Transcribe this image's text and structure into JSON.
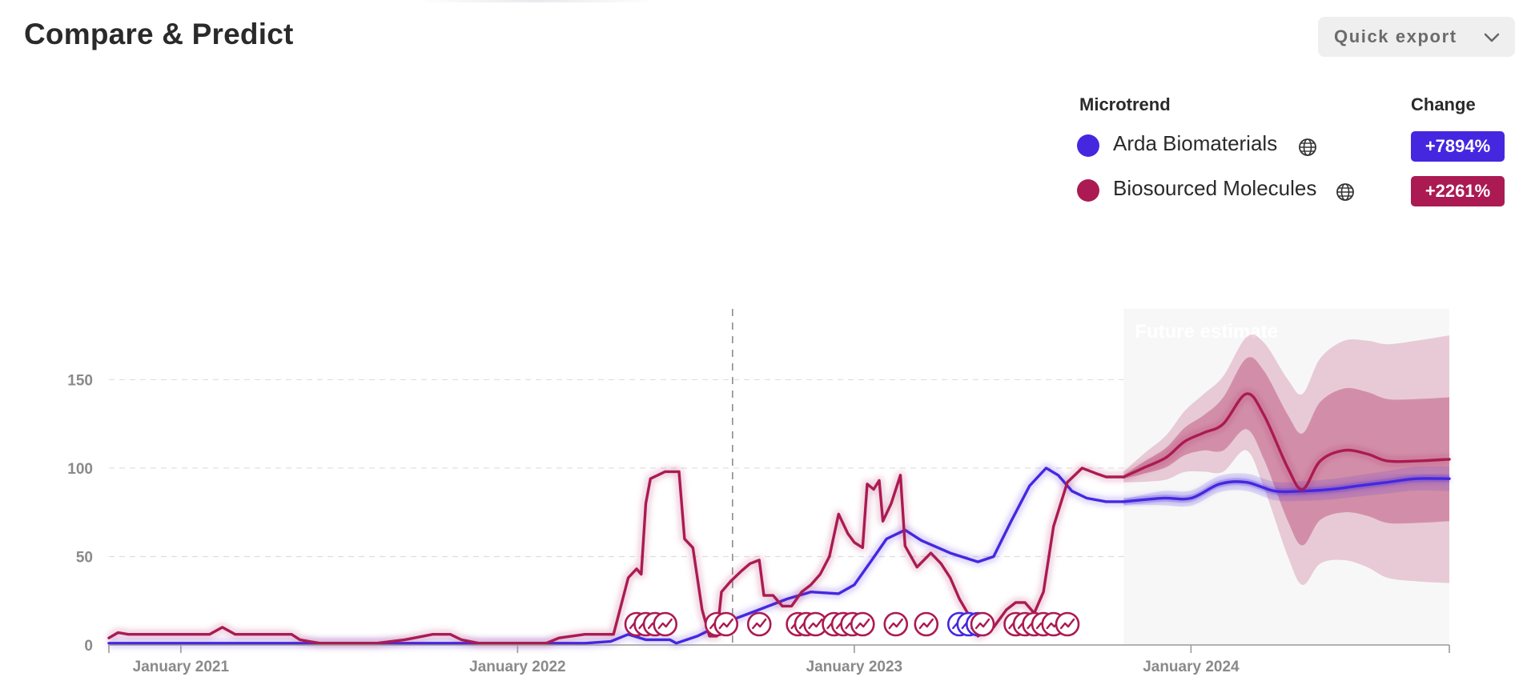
{
  "header": {
    "title": "Compare & Predict",
    "export_label": "Quick export"
  },
  "legend": {
    "name_header": "Microtrend",
    "change_header": "Change",
    "items": [
      {
        "name": "Arda Biomaterials",
        "change": "+7894%",
        "color": "#4527e0",
        "icon": "globe-icon"
      },
      {
        "name": "Biosourced Molecules",
        "change": "+2261%",
        "color": "#ab1a52",
        "icon": "globe-icon"
      }
    ]
  },
  "chart_data": {
    "type": "line",
    "future_label": "Future estimate",
    "ylim": [
      0,
      190
    ],
    "yticks": [
      0,
      50,
      100,
      150
    ],
    "xlim": [
      "2020-10-15",
      "2024-10-07"
    ],
    "xticks": [
      {
        "date": "2021-01-01",
        "label": "January 2021"
      },
      {
        "date": "2022-01-01",
        "label": "January 2022"
      },
      {
        "date": "2023-01-01",
        "label": "January 2023"
      },
      {
        "date": "2024-01-01",
        "label": "January 2024"
      }
    ],
    "forecast_start": "2023-10-20",
    "marker_date": "2022-08-22",
    "grid": true,
    "series": [
      {
        "name": "Arda Biomaterials",
        "color": "#4527e0",
        "points": [
          [
            "2020-10-15",
            1
          ],
          [
            "2021-06-01",
            1
          ],
          [
            "2022-01-01",
            1
          ],
          [
            "2022-03-15",
            1
          ],
          [
            "2022-04-12",
            2
          ],
          [
            "2022-05-01",
            6
          ],
          [
            "2022-05-20",
            3
          ],
          [
            "2022-06-15",
            3
          ],
          [
            "2022-06-22",
            1
          ],
          [
            "2022-07-15",
            5
          ],
          [
            "2022-08-15",
            13
          ],
          [
            "2022-09-15",
            19
          ],
          [
            "2022-10-20",
            26
          ],
          [
            "2022-11-15",
            30
          ],
          [
            "2022-12-15",
            29
          ],
          [
            "2023-01-01",
            34
          ],
          [
            "2023-01-20",
            48
          ],
          [
            "2023-02-05",
            60
          ],
          [
            "2023-02-25",
            65
          ],
          [
            "2023-03-15",
            59
          ],
          [
            "2023-04-15",
            52
          ],
          [
            "2023-05-15",
            47
          ],
          [
            "2023-06-01",
            50
          ],
          [
            "2023-06-20",
            70
          ],
          [
            "2023-07-10",
            90
          ],
          [
            "2023-07-28",
            100
          ],
          [
            "2023-08-10",
            96
          ],
          [
            "2023-08-25",
            87
          ],
          [
            "2023-09-10",
            83
          ],
          [
            "2023-10-01",
            81
          ],
          [
            "2023-10-20",
            81
          ]
        ],
        "forecast": [
          [
            "2023-10-20",
            81
          ],
          [
            "2023-12-01",
            83
          ],
          [
            "2024-01-01",
            83
          ],
          [
            "2024-02-01",
            91
          ],
          [
            "2024-03-01",
            92
          ],
          [
            "2024-04-01",
            87
          ],
          [
            "2024-05-01",
            87
          ],
          [
            "2024-06-01",
            88
          ],
          [
            "2024-07-01",
            90
          ],
          [
            "2024-08-01",
            92
          ],
          [
            "2024-09-01",
            94
          ],
          [
            "2024-10-07",
            94
          ]
        ],
        "band_inner_half": 2,
        "band_outer_half": [
          [
            0,
            1.5
          ],
          [
            1,
            4
          ],
          [
            11,
            7
          ]
        ],
        "badges": [
          "2023-04-25",
          "2023-05-05",
          "2023-05-15"
        ]
      },
      {
        "name": "Biosourced Molecules",
        "color": "#ab1a52",
        "points": [
          [
            "2020-10-15",
            4
          ],
          [
            "2020-10-25",
            7
          ],
          [
            "2020-11-05",
            6
          ],
          [
            "2021-02-01",
            6
          ],
          [
            "2021-02-15",
            10
          ],
          [
            "2021-03-01",
            6
          ],
          [
            "2021-04-01",
            6
          ],
          [
            "2021-05-01",
            6
          ],
          [
            "2021-05-10",
            3
          ],
          [
            "2021-05-20",
            2
          ],
          [
            "2021-06-01",
            1
          ],
          [
            "2021-08-01",
            1
          ],
          [
            "2021-09-01",
            3
          ],
          [
            "2021-10-01",
            6
          ],
          [
            "2021-10-20",
            6
          ],
          [
            "2021-11-01",
            3
          ],
          [
            "2021-11-20",
            1
          ],
          [
            "2022-01-01",
            1
          ],
          [
            "2022-02-01",
            1
          ],
          [
            "2022-02-15",
            4
          ],
          [
            "2022-03-15",
            6
          ],
          [
            "2022-04-01",
            6
          ],
          [
            "2022-04-15",
            6
          ],
          [
            "2022-05-01",
            38
          ],
          [
            "2022-05-10",
            43
          ],
          [
            "2022-05-15",
            40
          ],
          [
            "2022-05-20",
            80
          ],
          [
            "2022-05-25",
            94
          ],
          [
            "2022-06-10",
            98
          ],
          [
            "2022-06-25",
            98
          ],
          [
            "2022-07-01",
            60
          ],
          [
            "2022-07-10",
            55
          ],
          [
            "2022-07-20",
            20
          ],
          [
            "2022-07-28",
            5
          ],
          [
            "2022-08-05",
            5
          ],
          [
            "2022-08-10",
            30
          ],
          [
            "2022-08-20",
            36
          ],
          [
            "2022-09-01",
            42
          ],
          [
            "2022-09-10",
            46
          ],
          [
            "2022-09-20",
            48
          ],
          [
            "2022-09-25",
            28
          ],
          [
            "2022-10-05",
            28
          ],
          [
            "2022-10-15",
            22
          ],
          [
            "2022-10-25",
            22
          ],
          [
            "2022-11-05",
            30
          ],
          [
            "2022-11-15",
            34
          ],
          [
            "2022-11-25",
            40
          ],
          [
            "2022-12-05",
            50
          ],
          [
            "2022-12-15",
            74
          ],
          [
            "2022-12-25",
            63
          ],
          [
            "2023-01-01",
            58
          ],
          [
            "2023-01-10",
            55
          ],
          [
            "2023-01-15",
            91
          ],
          [
            "2023-01-22",
            88
          ],
          [
            "2023-01-28",
            93
          ],
          [
            "2023-02-01",
            70
          ],
          [
            "2023-02-10",
            80
          ],
          [
            "2023-02-20",
            96
          ],
          [
            "2023-02-25",
            56
          ],
          [
            "2023-03-10",
            44
          ],
          [
            "2023-03-25",
            52
          ],
          [
            "2023-04-05",
            46
          ],
          [
            "2023-04-15",
            38
          ],
          [
            "2023-04-25",
            26
          ],
          [
            "2023-05-05",
            17
          ],
          [
            "2023-05-15",
            5
          ],
          [
            "2023-06-01",
            10
          ],
          [
            "2023-06-15",
            20
          ],
          [
            "2023-06-25",
            24
          ],
          [
            "2023-07-05",
            24
          ],
          [
            "2023-07-15",
            18
          ],
          [
            "2023-07-25",
            30
          ],
          [
            "2023-08-05",
            67
          ],
          [
            "2023-08-20",
            92
          ],
          [
            "2023-09-05",
            100
          ],
          [
            "2023-09-20",
            97
          ],
          [
            "2023-10-01",
            95
          ],
          [
            "2023-10-20",
            95
          ]
        ],
        "forecast": [
          [
            "2023-10-20",
            95
          ],
          [
            "2023-11-10",
            100
          ],
          [
            "2023-12-05",
            106
          ],
          [
            "2023-12-25",
            115
          ],
          [
            "2024-01-15",
            120
          ],
          [
            "2024-02-05",
            125
          ],
          [
            "2024-03-01",
            142
          ],
          [
            "2024-03-20",
            130
          ],
          [
            "2024-04-15",
            100
          ],
          [
            "2024-05-01",
            88
          ],
          [
            "2024-05-20",
            104
          ],
          [
            "2024-06-15",
            110
          ],
          [
            "2024-07-10",
            108
          ],
          [
            "2024-08-01",
            104
          ],
          [
            "2024-09-01",
            104
          ],
          [
            "2024-10-07",
            105
          ]
        ],
        "band_inner_half": [
          [
            0,
            1
          ],
          [
            4,
            10
          ],
          [
            6,
            20
          ],
          [
            8,
            30
          ],
          [
            11,
            35
          ],
          [
            15,
            35
          ]
        ],
        "band_outer_half": [
          [
            0,
            3
          ],
          [
            4,
            22
          ],
          [
            6,
            32
          ],
          [
            8,
            50
          ],
          [
            11,
            62
          ],
          [
            15,
            70
          ]
        ],
        "badges": [
          "2022-05-10",
          "2022-05-20",
          "2022-05-30",
          "2022-06-10",
          "2022-08-05",
          "2022-08-15",
          "2022-09-20",
          "2022-11-01",
          "2022-11-10",
          "2022-11-20",
          "2022-12-10",
          "2022-12-20",
          "2022-12-30",
          "2023-01-10",
          "2023-02-15",
          "2023-03-20",
          "2023-05-20",
          "2023-06-25",
          "2023-07-05",
          "2023-07-15",
          "2023-07-25",
          "2023-08-05",
          "2023-08-20"
        ]
      }
    ]
  }
}
